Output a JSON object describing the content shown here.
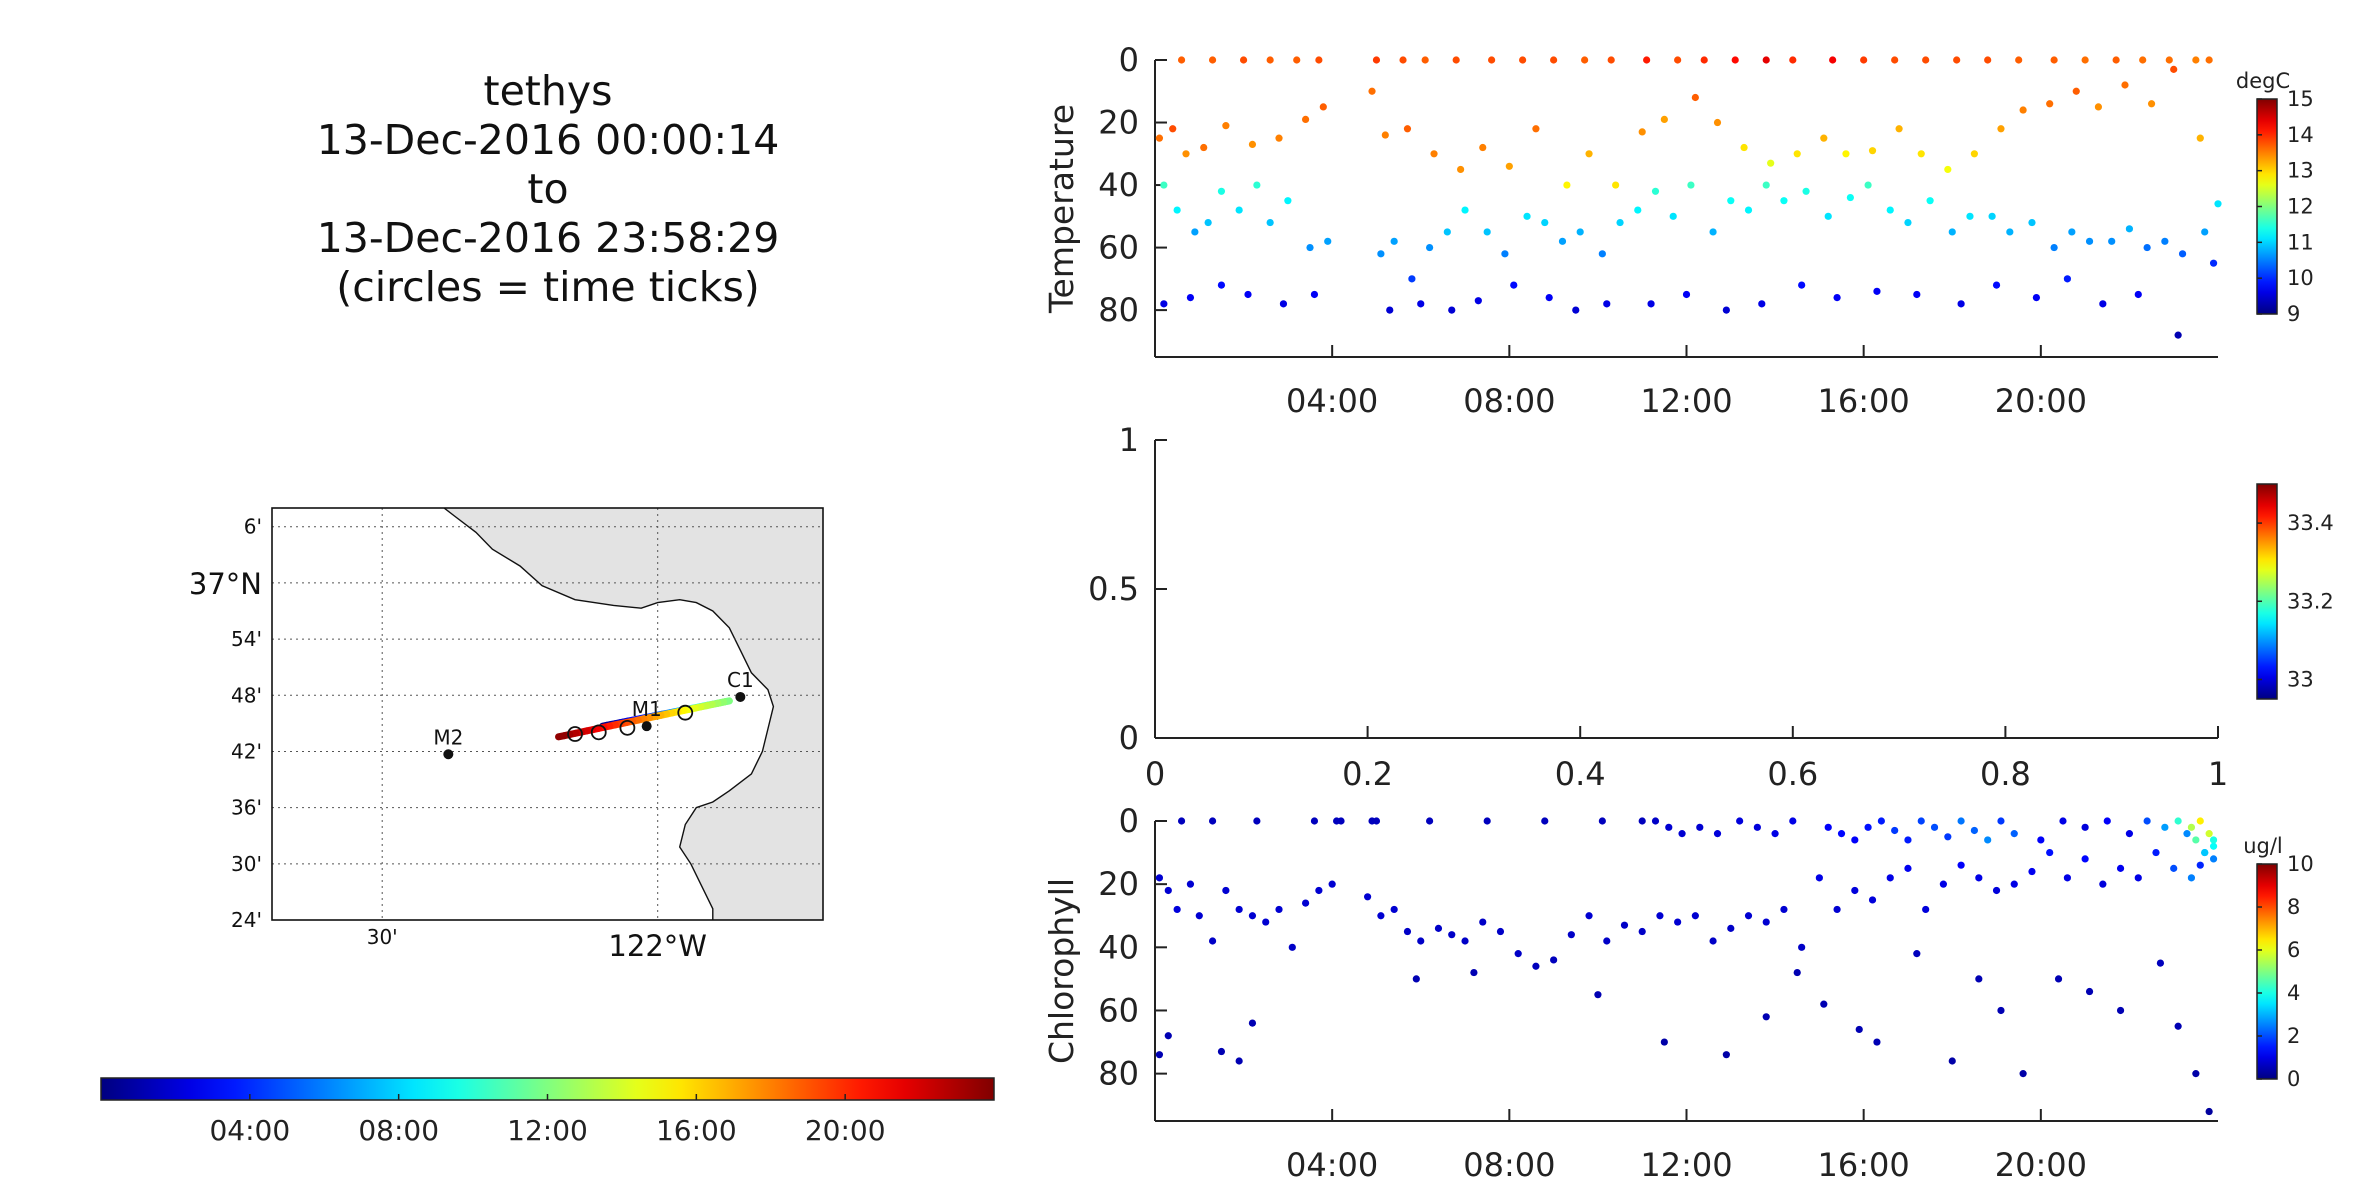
{
  "title": {
    "lines": [
      "tethys",
      "13-Dec-2016 00:00:14",
      "to",
      "13-Dec-2016 23:58:29",
      "(circles = time ticks)"
    ]
  },
  "time_colorbar": {
    "tick_labels": [
      "04:00",
      "08:00",
      "12:00",
      "16:00",
      "20:00"
    ],
    "tick_hours": [
      4,
      8,
      12,
      16,
      20
    ],
    "range_hours": [
      0,
      24
    ],
    "colormap": "jet"
  },
  "map": {
    "lat_labels": [
      "6'",
      "37°N",
      "54'",
      "48'",
      "42'",
      "36'",
      "30'",
      "24'"
    ],
    "lat_values": [
      37.1,
      37.0,
      36.9,
      36.8,
      36.7,
      36.6,
      36.5,
      36.4
    ],
    "lon_labels": [
      "30'",
      "122°W"
    ],
    "lon_values": [
      -122.5,
      -122.0
    ],
    "lon_range": [
      -122.7,
      -121.7
    ],
    "lat_range": [
      36.4,
      37.1333
    ],
    "land_color": "#e3e3e3",
    "stations": [
      {
        "name": "M2",
        "lon": -122.38,
        "lat": 36.695
      },
      {
        "name": "M1",
        "lon": -122.02,
        "lat": 36.745
      },
      {
        "name": "C1",
        "lon": -121.85,
        "lat": 36.797
      }
    ],
    "track": {
      "start": {
        "lon": -122.1,
        "lat": 36.745
      },
      "mid": {
        "lon": -121.87,
        "lat": 36.79
      },
      "end": {
        "lon": -122.18,
        "lat": 36.726
      }
    },
    "time_tick_circles": [
      {
        "lon": -122.15,
        "lat": 36.731
      },
      {
        "lon": -122.107,
        "lat": 36.734
      },
      {
        "lon": -122.055,
        "lat": 36.742
      },
      {
        "lon": -121.95,
        "lat": 36.769
      }
    ]
  },
  "chart_data": [
    {
      "type": "scatter",
      "ylabel": "Temperature",
      "xlabel": "",
      "x_range_hours": [
        0,
        24
      ],
      "ylim": [
        95,
        0
      ],
      "y_ticks": [
        0,
        20,
        40,
        60,
        80
      ],
      "x_tick_labels": [
        "04:00",
        "08:00",
        "12:00",
        "16:00",
        "20:00"
      ],
      "x_tick_hours": [
        4,
        8,
        12,
        16,
        20
      ],
      "colorbar": {
        "label": "degC",
        "min": 9,
        "max": 15,
        "ticks": [
          9,
          10,
          11,
          12,
          13,
          14,
          15
        ]
      },
      "x": [
        0.1,
        0.4,
        0.7,
        1.1,
        1.6,
        2.2,
        2.8,
        3.4,
        3.8,
        4.9,
        5.2,
        5.7,
        6.3,
        6.9,
        7.4,
        8.0,
        8.6,
        9.3,
        9.8,
        10.4,
        11.0,
        11.5,
        12.2,
        12.7,
        13.3,
        13.9,
        14.5,
        15.1,
        15.6,
        16.2,
        16.8,
        17.3,
        17.9,
        18.5,
        19.1,
        19.6,
        20.2,
        20.8,
        21.3,
        21.9,
        22.5,
        23.0,
        23.6,
        0.6,
        1.3,
        2.0,
        2.6,
        3.2,
        3.7,
        5.0,
        5.6,
        6.1,
        6.8,
        7.6,
        8.3,
        9.0,
        9.7,
        10.3,
        11.1,
        11.8,
        12.4,
        13.1,
        13.8,
        14.4,
        15.3,
        16.0,
        16.7,
        17.4,
        18.1,
        18.8,
        19.5,
        20.3,
        21.0,
        21.7,
        22.3,
        22.9,
        23.5,
        23.8
      ],
      "y": [
        25,
        22,
        30,
        28,
        21,
        27,
        25,
        19,
        15,
        10,
        24,
        22,
        30,
        35,
        28,
        34,
        22,
        40,
        30,
        40,
        23,
        19,
        12,
        20,
        28,
        33,
        30,
        25,
        30,
        29,
        22,
        30,
        35,
        30,
        22,
        16,
        14,
        10,
        15,
        8,
        14,
        3,
        25,
        0,
        0,
        0,
        0,
        0,
        0,
        0,
        0,
        0,
        0,
        0,
        0,
        0,
        0,
        0,
        0,
        0,
        0,
        0,
        0,
        0,
        0,
        0,
        0,
        0,
        0,
        0,
        0,
        0,
        0,
        0,
        0,
        0,
        0,
        0
      ],
      "c": [
        13.6,
        13.8,
        13.4,
        13.6,
        13.5,
        13.4,
        13.5,
        13.6,
        13.7,
        13.6,
        13.5,
        13.7,
        13.5,
        13.4,
        13.5,
        13.3,
        13.6,
        12.8,
        13.2,
        12.9,
        13.4,
        13.3,
        13.7,
        13.4,
        12.9,
        12.6,
        12.9,
        13.2,
        12.8,
        13.0,
        13.2,
        12.9,
        12.7,
        13.0,
        13.3,
        13.5,
        13.6,
        13.7,
        13.4,
        13.6,
        13.4,
        13.8,
        13.2,
        13.7,
        13.7,
        13.8,
        13.7,
        13.7,
        13.8,
        13.9,
        13.8,
        13.7,
        13.8,
        13.8,
        13.8,
        13.8,
        13.7,
        13.8,
        14.1,
        13.8,
        14.0,
        14.2,
        14.4,
        14.0,
        14.3,
        13.9,
        13.8,
        13.8,
        13.8,
        13.8,
        13.7,
        13.7,
        13.6,
        13.7,
        13.6,
        13.6,
        13.5,
        13.6
      ],
      "x2": [
        0.2,
        0.5,
        0.9,
        1.2,
        1.5,
        1.9,
        2.3,
        2.6,
        3.0,
        3.5,
        3.9,
        5.1,
        5.4,
        5.8,
        6.2,
        6.6,
        7.0,
        7.5,
        7.9,
        8.4,
        8.8,
        9.2,
        9.6,
        10.1,
        10.5,
        10.9,
        11.3,
        11.7,
        12.1,
        12.6,
        13.0,
        13.4,
        13.8,
        14.2,
        14.7,
        15.2,
        15.7,
        16.1,
        16.6,
        17.0,
        17.5,
        18.0,
        18.4,
        18.9,
        19.3,
        19.8,
        20.3,
        20.7,
        21.1,
        21.6,
        22.0,
        22.4,
        22.8,
        23.2,
        23.7,
        24.0
      ],
      "y2": [
        40,
        48,
        55,
        52,
        42,
        48,
        40,
        52,
        45,
        60,
        58,
        62,
        58,
        70,
        60,
        55,
        48,
        55,
        62,
        50,
        52,
        58,
        55,
        62,
        52,
        48,
        42,
        50,
        40,
        55,
        45,
        48,
        40,
        45,
        42,
        50,
        44,
        40,
        48,
        52,
        45,
        55,
        50,
        50,
        55,
        52,
        60,
        55,
        58,
        58,
        54,
        60,
        58,
        62,
        55,
        46
      ],
      "c2": [
        11.6,
        11.2,
        10.7,
        10.9,
        11.4,
        11.1,
        11.5,
        10.9,
        11.2,
        10.6,
        10.7,
        10.6,
        10.7,
        10.1,
        10.6,
        10.9,
        11.2,
        10.9,
        10.5,
        11.1,
        11.0,
        10.7,
        10.8,
        10.5,
        11.0,
        11.2,
        11.5,
        11.1,
        11.6,
        10.8,
        11.3,
        11.2,
        11.6,
        11.3,
        11.4,
        11.1,
        11.3,
        11.6,
        11.2,
        11.0,
        11.3,
        10.8,
        11.1,
        11.0,
        10.8,
        10.9,
        10.5,
        10.7,
        10.6,
        10.6,
        10.8,
        10.4,
        10.5,
        10.3,
        10.7,
        11.1
      ],
      "x3": [
        0.2,
        0.8,
        1.5,
        2.1,
        2.9,
        3.6,
        5.3,
        6.0,
        6.7,
        7.3,
        8.1,
        8.9,
        9.5,
        10.2,
        11.2,
        12.0,
        12.9,
        13.7,
        14.6,
        15.4,
        16.3,
        17.2,
        18.2,
        19.0,
        19.9,
        20.6,
        21.4,
        22.2,
        23.1,
        23.9
      ],
      "y3": [
        78,
        76,
        72,
        75,
        78,
        75,
        80,
        78,
        80,
        77,
        72,
        76,
        80,
        78,
        78,
        75,
        80,
        78,
        72,
        76,
        74,
        75,
        78,
        72,
        76,
        70,
        78,
        75,
        88,
        65
      ],
      "c3": [
        9.6,
        9.7,
        9.8,
        9.7,
        9.6,
        9.7,
        9.5,
        9.6,
        9.5,
        9.6,
        9.8,
        9.7,
        9.5,
        9.6,
        9.6,
        9.7,
        9.5,
        9.6,
        9.8,
        9.7,
        9.7,
        9.7,
        9.6,
        9.8,
        9.7,
        9.9,
        9.6,
        9.7,
        9.3,
        10.0
      ]
    },
    {
      "type": "scatter",
      "ylabel": "",
      "xlabel": "",
      "empty": true,
      "x_ticks": [
        0,
        0.2,
        0.4,
        0.6,
        0.8,
        1
      ],
      "x_tick_labels": [
        "0",
        "0.2",
        "0.4",
        "0.6",
        "0.8",
        "1"
      ],
      "y_ticks": [
        0,
        0.5,
        1
      ],
      "y_tick_labels": [
        "0",
        "0.5",
        "1"
      ],
      "colorbar": {
        "label": "",
        "min": 32.95,
        "max": 33.5,
        "ticks": [
          33,
          33.2,
          33.4
        ],
        "tick_labels": [
          "33",
          "33.2",
          "33.4"
        ]
      }
    },
    {
      "type": "scatter",
      "ylabel": "Chlorophyll",
      "xlabel": "",
      "x_range_hours": [
        0,
        24
      ],
      "ylim": [
        95,
        0
      ],
      "y_ticks": [
        0,
        20,
        40,
        60,
        80
      ],
      "x_tick_labels": [
        "04:00",
        "08:00",
        "12:00",
        "16:00",
        "20:00"
      ],
      "x_tick_hours": [
        4,
        8,
        12,
        16,
        20
      ],
      "colorbar": {
        "label": "ug/l",
        "min": 0,
        "max": 10,
        "ticks": [
          0,
          2,
          4,
          6,
          8,
          10
        ]
      },
      "x": [
        0.1,
        0.3,
        0.5,
        0.8,
        1.0,
        1.3,
        1.6,
        1.9,
        2.2,
        2.5,
        2.8,
        3.1,
        3.4,
        3.7,
        4.0,
        4.8,
        5.1,
        5.4,
        5.7,
        6.0,
        6.4,
        6.7,
        7.0,
        7.4,
        7.8,
        8.2,
        8.6,
        9.0,
        9.4,
        9.8,
        10.2,
        10.6,
        11.0,
        11.4,
        11.8,
        12.2,
        12.6,
        13.0,
        13.4,
        13.8,
        14.2,
        14.6,
        15.0,
        15.4,
        15.8,
        16.2,
        16.6,
        17.0,
        17.4,
        17.8,
        18.2,
        18.6,
        19.0,
        19.4,
        19.8,
        20.2,
        20.6,
        21.0,
        21.4,
        21.8,
        22.2,
        22.6,
        23.0,
        23.4,
        23.7,
        23.9,
        0.1,
        0.3,
        1.5,
        1.9,
        2.2,
        4.1,
        4.9,
        5.9,
        7.2,
        10.0,
        11.0,
        11.5,
        12.9,
        13.8,
        14.5,
        15.1,
        15.9,
        16.3,
        17.2,
        18.0,
        18.6,
        19.1,
        19.6,
        20.4,
        21.1,
        21.8,
        22.7,
        23.1,
        23.5,
        23.8
      ],
      "y": [
        18,
        22,
        28,
        20,
        30,
        38,
        22,
        28,
        30,
        32,
        28,
        40,
        26,
        22,
        20,
        24,
        30,
        28,
        35,
        38,
        34,
        36,
        38,
        32,
        35,
        42,
        46,
        44,
        36,
        30,
        38,
        33,
        35,
        30,
        32,
        30,
        38,
        34,
        30,
        32,
        28,
        40,
        18,
        28,
        22,
        25,
        18,
        15,
        28,
        20,
        14,
        18,
        22,
        20,
        16,
        10,
        18,
        12,
        20,
        15,
        18,
        10,
        15,
        18,
        10,
        12,
        74,
        68,
        73,
        76,
        64,
        0,
        0,
        50,
        48,
        55,
        0,
        70,
        74,
        62,
        48,
        58,
        66,
        70,
        42,
        76,
        50,
        60,
        80,
        50,
        54,
        60,
        45,
        65,
        80,
        92
      ],
      "c": [
        0.8,
        0.8,
        0.9,
        0.8,
        0.8,
        0.7,
        0.8,
        0.8,
        0.8,
        0.8,
        0.8,
        0.7,
        0.8,
        0.8,
        0.8,
        0.8,
        0.8,
        0.8,
        0.7,
        0.7,
        0.7,
        0.7,
        0.7,
        0.7,
        0.7,
        0.7,
        0.6,
        0.6,
        0.7,
        0.8,
        0.7,
        0.7,
        0.7,
        0.8,
        0.8,
        0.8,
        0.7,
        0.7,
        0.8,
        0.8,
        0.8,
        0.7,
        1.0,
        0.8,
        0.9,
        0.9,
        1.0,
        1.1,
        0.9,
        1.0,
        1.2,
        1.0,
        0.9,
        1.0,
        1.1,
        1.4,
        1.0,
        1.3,
        0.9,
        1.1,
        1.0,
        1.5,
        2.0,
        2.5,
        3.0,
        2.5,
        0.5,
        0.5,
        0.5,
        0.5,
        0.5,
        0.6,
        0.6,
        0.5,
        0.5,
        0.5,
        0.6,
        0.4,
        0.4,
        0.5,
        0.5,
        0.5,
        0.5,
        0.5,
        0.6,
        0.4,
        0.5,
        0.5,
        0.4,
        0.5,
        0.5,
        0.5,
        0.6,
        0.5,
        0.4,
        0.3
      ],
      "x2": [
        0.6,
        1.3,
        2.3,
        3.6,
        4.2,
        5.0,
        6.2,
        7.5,
        8.8,
        10.1,
        11.3,
        11.6,
        11.9,
        12.3,
        12.7,
        13.2,
        13.6,
        14.0,
        14.4,
        15.2,
        15.5,
        15.8,
        16.1,
        16.4,
        16.7,
        17.0,
        17.3,
        17.6,
        17.9,
        18.2,
        18.5,
        18.8,
        19.1,
        19.4,
        20.0,
        20.5,
        21.0,
        21.5,
        22.0,
        22.4,
        22.8,
        23.1,
        23.4,
        23.6,
        23.8,
        23.9,
        23.5,
        23.7,
        23.9,
        23.3,
        23.6
      ],
      "y2": [
        0,
        0,
        0,
        0,
        0,
        0,
        0,
        0,
        0,
        0,
        0,
        2,
        4,
        2,
        4,
        0,
        2,
        4,
        0,
        2,
        4,
        6,
        2,
        0,
        3,
        6,
        0,
        2,
        5,
        0,
        3,
        6,
        0,
        4,
        6,
        0,
        2,
        0,
        4,
        0,
        2,
        0,
        2,
        0,
        4,
        8,
        6,
        10,
        6,
        4,
        14
      ],
      "c2": [
        0.6,
        0.6,
        0.6,
        0.6,
        0.6,
        0.6,
        0.6,
        0.6,
        0.6,
        0.6,
        0.7,
        0.8,
        0.8,
        0.8,
        0.9,
        0.9,
        0.9,
        1.0,
        1.0,
        1.2,
        1.3,
        1.2,
        1.4,
        1.5,
        1.8,
        1.5,
        1.9,
        2.0,
        1.8,
        2.4,
        2.2,
        2.6,
        1.8,
        2.2,
        1.2,
        1.0,
        0.9,
        1.2,
        1.0,
        2.0,
        2.8,
        4.2,
        5.5,
        6.4,
        5.8,
        3.8,
        4.6,
        3.2,
        4.0,
        2.6,
        1.6
      ]
    }
  ]
}
